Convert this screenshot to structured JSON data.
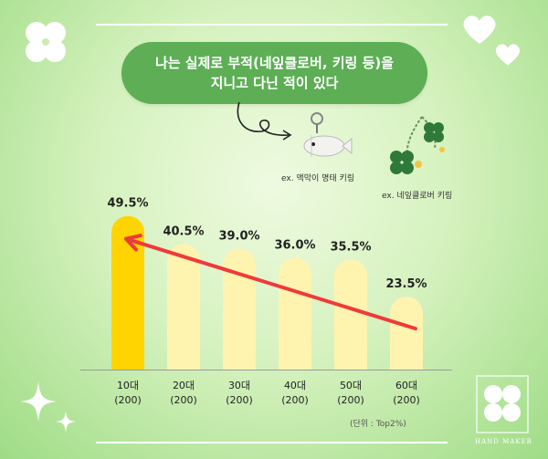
{
  "header": {
    "line1": "나는 실제로 부적(네잎클로버, 키링 등)을",
    "line2": "지니고 다닌 적이 있다"
  },
  "examples": [
    {
      "label": "ex. 액막이 명태 키링",
      "icon": "fish-keyring-icon"
    },
    {
      "label": "ex. 네잎클로버 키링",
      "icon": "clover-keyring-icon"
    }
  ],
  "unit_note": "(단위 : Top2%)",
  "brand": "HAND MAKER",
  "colors": {
    "highlight_bar": "#ffd400",
    "bar": "#fff3b0",
    "trend_arrow": "#ef3a3a",
    "bubble": "#5dae55"
  },
  "chart_data": {
    "type": "bar",
    "categories": [
      "10대",
      "20대",
      "30대",
      "40대",
      "50대",
      "60대"
    ],
    "sublabels": [
      "(200)",
      "(200)",
      "(200)",
      "(200)",
      "(200)",
      "(200)"
    ],
    "values": [
      49.5,
      40.5,
      39.0,
      36.0,
      35.5,
      23.5
    ],
    "value_labels": [
      "49.5%",
      "40.5%",
      "39.0%",
      "36.0%",
      "35.5%",
      "23.5%"
    ],
    "highlight_index": 0,
    "trend_arrow": {
      "from_index": 5,
      "to_index": 0
    }
  }
}
